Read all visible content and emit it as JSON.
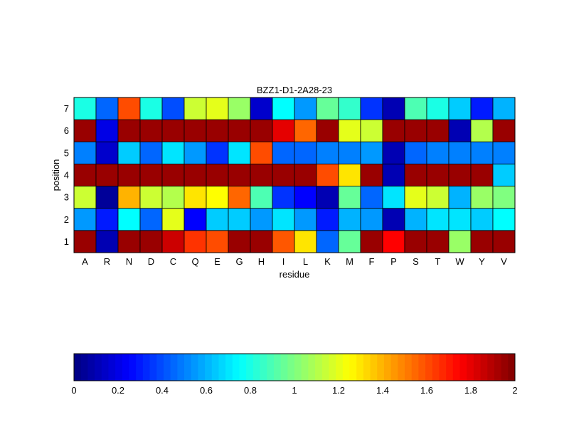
{
  "chart_data": {
    "type": "heatmap",
    "title": "BZZ1-D1-2A28-23",
    "xlabel": "residue",
    "ylabel": "position",
    "x_categories": [
      "A",
      "R",
      "N",
      "D",
      "C",
      "Q",
      "E",
      "G",
      "H",
      "I",
      "L",
      "K",
      "M",
      "F",
      "P",
      "S",
      "T",
      "W",
      "Y",
      "V"
    ],
    "y_categories": [
      "1",
      "2",
      "3",
      "4",
      "5",
      "6",
      "7"
    ],
    "values": [
      [
        1.95,
        0.1,
        1.95,
        1.95,
        1.85,
        1.65,
        1.6,
        1.95,
        1.95,
        1.58,
        1.3,
        0.45,
        0.95,
        1.95,
        1.75,
        1.95,
        1.95,
        1.05,
        1.95,
        1.95
      ],
      [
        0.55,
        0.3,
        0.75,
        0.45,
        1.2,
        0.25,
        0.65,
        0.65,
        0.55,
        0.7,
        0.55,
        0.3,
        0.6,
        0.55,
        0.1,
        0.6,
        0.7,
        0.7,
        0.65,
        0.75
      ],
      [
        1.15,
        0.05,
        1.4,
        1.15,
        1.1,
        1.3,
        1.25,
        1.55,
        0.9,
        0.35,
        0.25,
        0.1,
        0.95,
        0.45,
        0.7,
        1.2,
        1.15,
        0.6,
        1.05,
        1.0
      ],
      [
        1.95,
        1.95,
        1.95,
        1.95,
        1.95,
        1.95,
        1.95,
        1.95,
        1.95,
        1.95,
        1.95,
        1.6,
        1.3,
        1.95,
        0.1,
        1.95,
        1.95,
        1.95,
        1.95,
        0.65
      ],
      [
        0.5,
        0.15,
        0.65,
        0.45,
        0.7,
        0.55,
        0.35,
        0.7,
        1.6,
        0.45,
        0.45,
        0.5,
        0.5,
        0.55,
        0.1,
        0.45,
        0.5,
        0.5,
        0.5,
        0.5
      ],
      [
        1.95,
        0.2,
        1.95,
        1.95,
        1.95,
        1.95,
        1.95,
        1.95,
        1.95,
        1.8,
        1.55,
        1.95,
        1.2,
        1.15,
        1.95,
        1.95,
        1.95,
        0.1,
        1.1,
        1.95
      ],
      [
        0.8,
        0.45,
        1.6,
        0.8,
        0.4,
        1.15,
        1.2,
        1.05,
        0.15,
        0.75,
        0.55,
        0.95,
        0.85,
        0.35,
        0.1,
        0.9,
        0.8,
        0.65,
        0.3,
        0.6
      ]
    ],
    "colorbar": {
      "range": [
        0,
        2
      ],
      "ticks": [
        "0",
        "0.2",
        "0.4",
        "0.6",
        "0.8",
        "1",
        "1.2",
        "1.4",
        "1.6",
        "1.8",
        "2"
      ],
      "colormap": "jet",
      "placement": "bottom"
    }
  }
}
